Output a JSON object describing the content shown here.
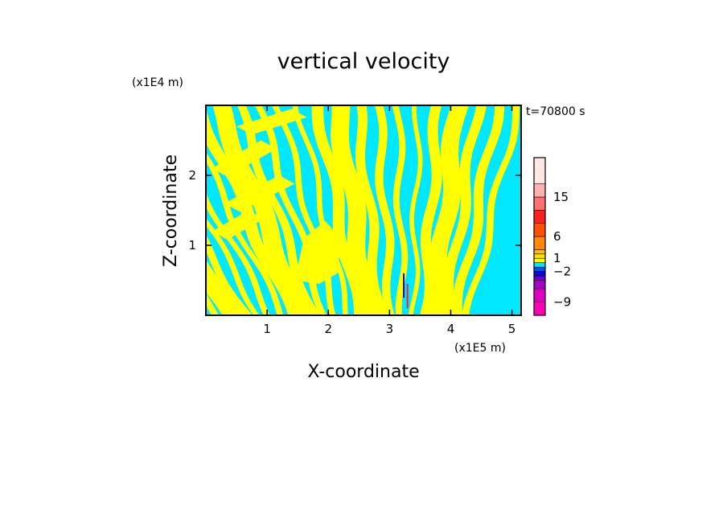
{
  "chart_data": {
    "type": "heatmap",
    "title": "vertical velocity",
    "xlabel": "X-coordinate",
    "ylabel": "Z-coordinate",
    "x_unit": "(x1E5 m)",
    "y_unit": "(x1E4 m)",
    "time_label": "t=70800 s",
    "xlim": [
      0,
      5.15
    ],
    "ylim": [
      0,
      3.0
    ],
    "x_ticks": [
      1,
      2,
      3,
      4,
      5
    ],
    "y_ticks": [
      1,
      2
    ],
    "grid": false,
    "colorbar": {
      "levels": [
        {
          "from": -12,
          "to": -9,
          "color": "#ff00b4"
        },
        {
          "from": -9,
          "to": -6,
          "color": "#e000c0"
        },
        {
          "from": -6,
          "to": -4,
          "color": "#a800c8"
        },
        {
          "from": -4,
          "to": -3,
          "color": "#6800d0"
        },
        {
          "from": -3,
          "to": -2,
          "color": "#1800d8"
        },
        {
          "from": -2,
          "to": -1,
          "color": "#0050ff"
        },
        {
          "from": -1,
          "to": 0,
          "color": "#00e8ff"
        },
        {
          "from": 0,
          "to": 1,
          "color": "#ffff00"
        },
        {
          "from": 1,
          "to": 2,
          "color": "#ffe000"
        },
        {
          "from": 2,
          "to": 3,
          "color": "#ffbe00"
        },
        {
          "from": 3,
          "to": 6,
          "color": "#ff8a00"
        },
        {
          "from": 6,
          "to": 9,
          "color": "#ff5000"
        },
        {
          "from": 9,
          "to": 12,
          "color": "#ff2020"
        },
        {
          "from": 12,
          "to": 15,
          "color": "#ff7070"
        },
        {
          "from": 15,
          "to": 18,
          "color": "#ffb0b0"
        },
        {
          "from": 18,
          "to": 24,
          "color": "#ffe8e4"
        }
      ],
      "tick_labels": [
        "15",
        "6",
        "1",
        "−2",
        "−9"
      ],
      "tick_values": [
        15,
        6,
        1,
        -2,
        -9
      ]
    },
    "dominant_colors": {
      "positive": "#ffff00",
      "negative": "#00e8ff"
    }
  }
}
